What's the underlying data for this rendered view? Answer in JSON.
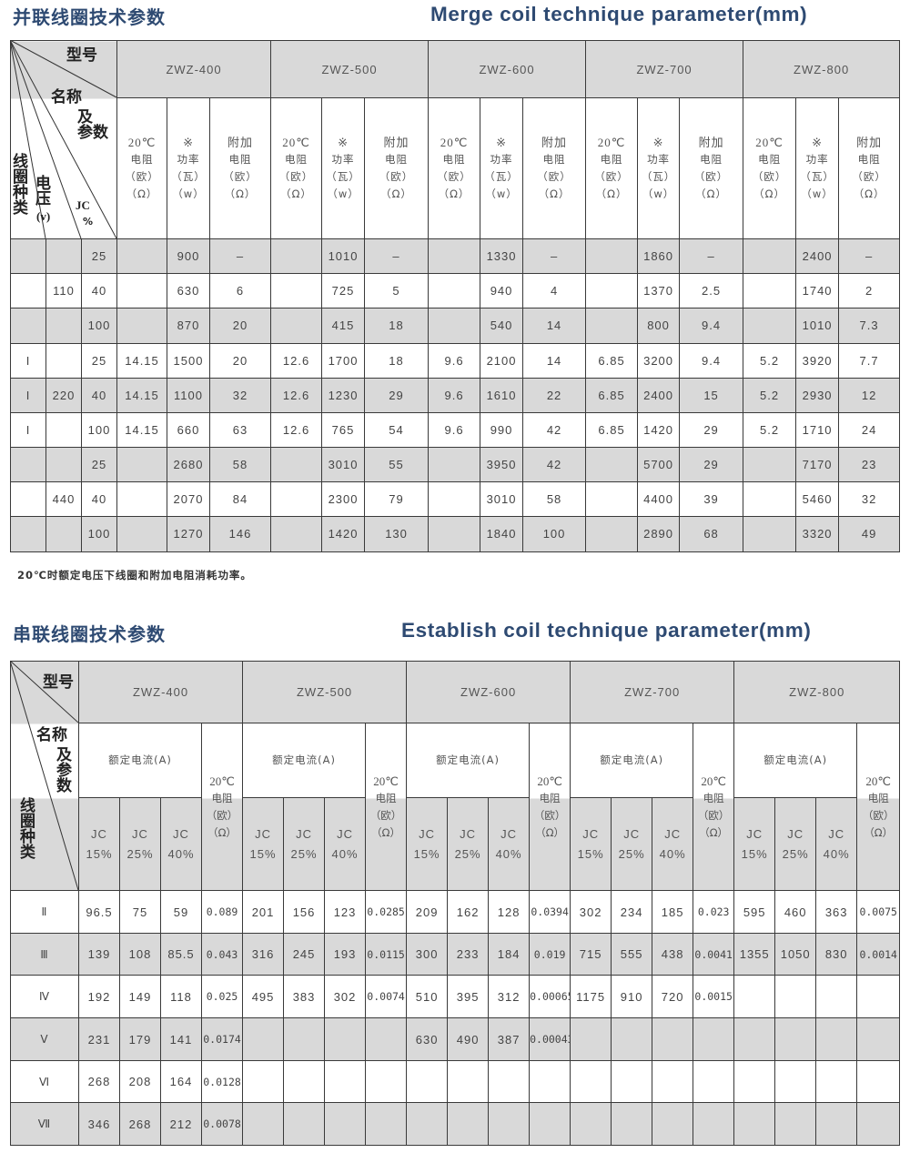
{
  "merge": {
    "title_cn": "并联线圈技术参数",
    "title_en": "Merge coil technique parameter(mm)",
    "corner": {
      "model": "型号",
      "name": "名称",
      "and": "及",
      "params": "参数",
      "coil_type": "线圈种类",
      "voltage": "电压",
      "voltage_unit": "(v)",
      "jc": "JC",
      "percent": "%"
    },
    "models": [
      "ZWZ-400",
      "ZWZ-500",
      "ZWZ-600",
      "ZWZ-700",
      "ZWZ-800"
    ],
    "param_headers": [
      [
        "20℃",
        "电阻",
        "（欧）",
        "（Ω）"
      ],
      [
        "※",
        "功率",
        "（瓦）",
        "（w）"
      ],
      [
        "附加",
        "电阻",
        "（欧）",
        "（Ω）"
      ]
    ],
    "rows": [
      [
        "",
        "",
        "25",
        "",
        "900",
        "–",
        "",
        "1010",
        "–",
        "",
        "1330",
        "–",
        "",
        "1860",
        "–",
        "",
        "2400",
        "–"
      ],
      [
        "",
        "110",
        "40",
        "",
        "630",
        "6",
        "",
        "725",
        "5",
        "",
        "940",
        "4",
        "",
        "1370",
        "2.5",
        "",
        "1740",
        "2"
      ],
      [
        "",
        "",
        "100",
        "",
        "870",
        "20",
        "",
        "415",
        "18",
        "",
        "540",
        "14",
        "",
        "800",
        "9.4",
        "",
        "1010",
        "7.3"
      ],
      [
        "I",
        "",
        "25",
        "14.15",
        "1500",
        "20",
        "12.6",
        "1700",
        "18",
        "9.6",
        "2100",
        "14",
        "6.85",
        "3200",
        "9.4",
        "5.2",
        "3920",
        "7.7"
      ],
      [
        "I",
        "220",
        "40",
        "14.15",
        "1100",
        "32",
        "12.6",
        "1230",
        "29",
        "9.6",
        "1610",
        "22",
        "6.85",
        "2400",
        "15",
        "5.2",
        "2930",
        "12"
      ],
      [
        "I",
        "",
        "100",
        "14.15",
        "660",
        "63",
        "12.6",
        "765",
        "54",
        "9.6",
        "990",
        "42",
        "6.85",
        "1420",
        "29",
        "5.2",
        "1710",
        "24"
      ],
      [
        "",
        "",
        "25",
        "",
        "2680",
        "58",
        "",
        "3010",
        "55",
        "",
        "3950",
        "42",
        "",
        "5700",
        "29",
        "",
        "7170",
        "23"
      ],
      [
        "",
        "440",
        "40",
        "",
        "2070",
        "84",
        "",
        "2300",
        "79",
        "",
        "3010",
        "58",
        "",
        "4400",
        "39",
        "",
        "5460",
        "32"
      ],
      [
        "",
        "",
        "100",
        "",
        "1270",
        "146",
        "",
        "1420",
        "130",
        "",
        "1840",
        "100",
        "",
        "2890",
        "68",
        "",
        "3320",
        "49"
      ]
    ],
    "note": "20℃时额定电压下线圈和附加电阻消耗功率。"
  },
  "series": {
    "title_cn": "串联线圈技术参数",
    "title_en": "Establish coil technique parameter(mm)",
    "corner": {
      "model": "型号",
      "name": "名称",
      "and_params": "及参数",
      "coil_type": "线圈种类"
    },
    "models": [
      "ZWZ-400",
      "ZWZ-500",
      "ZWZ-600",
      "ZWZ-700",
      "ZWZ-800"
    ],
    "current_header": "额定电流(A)",
    "resistance_header": [
      "20℃",
      "电阻",
      "（欧）",
      "（Ω）"
    ],
    "jc_headers": [
      [
        "JC",
        "15%"
      ],
      [
        "JC",
        "25%"
      ],
      [
        "JC",
        "40%"
      ]
    ],
    "rows": [
      [
        "Ⅱ",
        "96.5",
        "75",
        "59",
        "0.089",
        "201",
        "156",
        "123",
        "0.0285",
        "209",
        "162",
        "128",
        "0.0394",
        "302",
        "234",
        "185",
        "0.023",
        "595",
        "460",
        "363",
        "0.0075"
      ],
      [
        "Ⅲ",
        "139",
        "108",
        "85.5",
        "0.043",
        "316",
        "245",
        "193",
        "0.0115",
        "300",
        "233",
        "184",
        "0.019",
        "715",
        "555",
        "438",
        "0.0041",
        "1355",
        "1050",
        "830",
        "0.0014"
      ],
      [
        "Ⅳ",
        "192",
        "149",
        "118",
        "0.025",
        "495",
        "383",
        "302",
        "0.0074",
        "510",
        "395",
        "312",
        "0.00065",
        "1175",
        "910",
        "720",
        "0.0015",
        "",
        "",
        "",
        ""
      ],
      [
        "Ⅴ",
        "231",
        "179",
        "141",
        "0.0174",
        "",
        "",
        "",
        "",
        "630",
        "490",
        "387",
        "0.00043",
        "",
        "",
        "",
        "",
        "",
        "",
        "",
        ""
      ],
      [
        "Ⅵ",
        "268",
        "208",
        "164",
        "0.0128",
        "",
        "",
        "",
        "",
        "",
        "",
        "",
        "",
        "",
        "",
        "",
        "",
        "",
        "",
        "",
        ""
      ],
      [
        "Ⅶ",
        "346",
        "268",
        "212",
        "0.0078",
        "",
        "",
        "",
        "",
        "",
        "",
        "",
        "",
        "",
        "",
        "",
        "",
        "",
        "",
        "",
        ""
      ]
    ]
  },
  "colors": {
    "title": "#2e4a72",
    "row_shade": "#d9d9d9",
    "grid": "#3a3a3a"
  }
}
